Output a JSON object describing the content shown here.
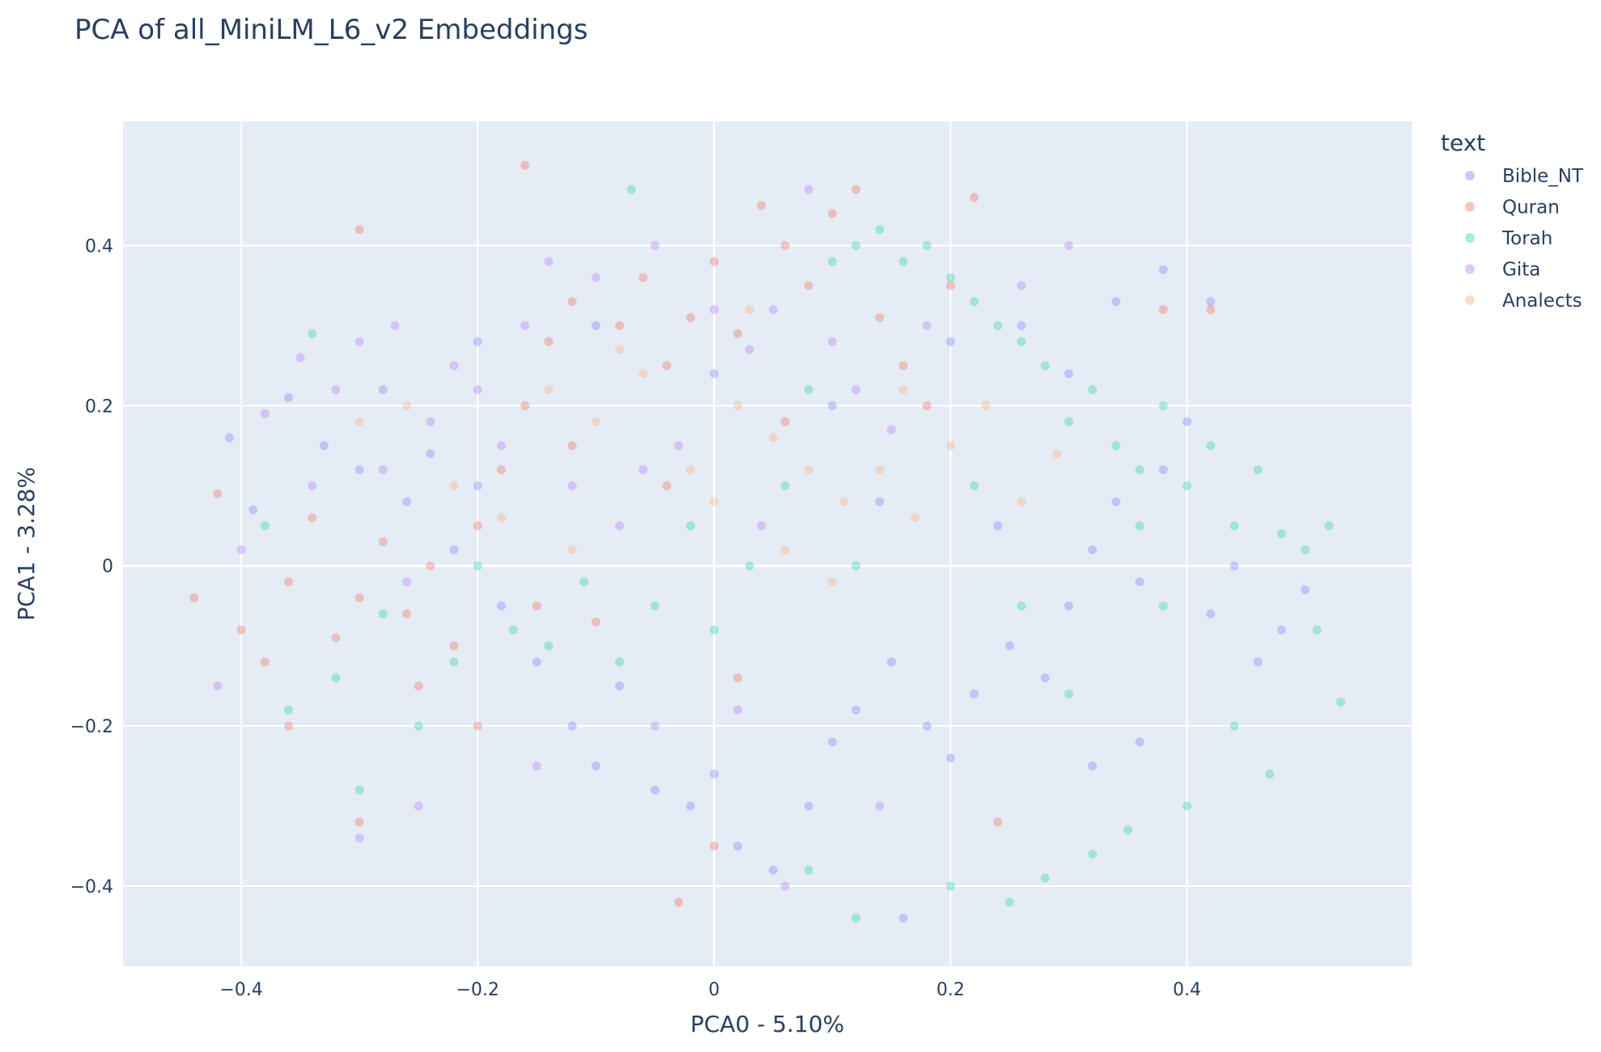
{
  "chart_data": {
    "type": "scatter",
    "title": "PCA of all_MiniLM_L6_v2 Embeddings",
    "xlabel": "PCA0 - 5.10%",
    "ylabel": "PCA1 - 3.28%",
    "xlim": [
      -0.5,
      0.59
    ],
    "ylim": [
      -0.5,
      0.555
    ],
    "xticks": [
      -0.4,
      -0.2,
      0,
      0.2,
      0.4
    ],
    "xtick_labels": [
      "−0.4",
      "−0.2",
      "0",
      "0.2",
      "0.4"
    ],
    "yticks": [
      -0.4,
      -0.2,
      0,
      0.2,
      0.4
    ],
    "ytick_labels": [
      "−0.4",
      "−0.2",
      "0",
      "0.2",
      "0.4"
    ],
    "grid": true,
    "legend_title": "text",
    "legend_position": "right",
    "series": [
      {
        "name": "Bible_NT",
        "color": "#636efa",
        "points": [
          [
            -0.41,
            0.16
          ],
          [
            -0.39,
            0.07
          ],
          [
            -0.36,
            0.21
          ],
          [
            -0.33,
            0.15
          ],
          [
            -0.3,
            0.12
          ],
          [
            -0.28,
            0.22
          ],
          [
            -0.26,
            0.08
          ],
          [
            -0.24,
            0.14
          ],
          [
            -0.22,
            0.02
          ],
          [
            -0.2,
            0.1
          ],
          [
            -0.18,
            -0.05
          ],
          [
            -0.15,
            -0.12
          ],
          [
            -0.12,
            -0.2
          ],
          [
            -0.1,
            -0.25
          ],
          [
            -0.08,
            -0.15
          ],
          [
            -0.05,
            -0.28
          ],
          [
            -0.02,
            -0.3
          ],
          [
            0.0,
            -0.26
          ],
          [
            0.02,
            -0.35
          ],
          [
            0.05,
            -0.38
          ],
          [
            0.08,
            -0.3
          ],
          [
            0.1,
            -0.22
          ],
          [
            0.12,
            -0.18
          ],
          [
            0.15,
            -0.12
          ],
          [
            0.18,
            -0.2
          ],
          [
            0.2,
            -0.24
          ],
          [
            0.22,
            -0.16
          ],
          [
            0.25,
            -0.1
          ],
          [
            0.28,
            -0.14
          ],
          [
            0.3,
            -0.05
          ],
          [
            0.32,
            0.02
          ],
          [
            0.34,
            0.08
          ],
          [
            0.36,
            -0.02
          ],
          [
            0.38,
            0.12
          ],
          [
            0.4,
            0.18
          ],
          [
            0.42,
            -0.06
          ],
          [
            0.44,
            0.0
          ],
          [
            0.46,
            -0.12
          ],
          [
            0.48,
            -0.08
          ],
          [
            0.5,
            -0.03
          ],
          [
            0.3,
            0.24
          ],
          [
            0.26,
            0.3
          ],
          [
            0.34,
            0.33
          ],
          [
            0.38,
            0.37
          ],
          [
            0.42,
            0.33
          ],
          [
            0.2,
            0.28
          ],
          [
            0.1,
            0.2
          ],
          [
            0.0,
            0.24
          ],
          [
            -0.1,
            0.3
          ],
          [
            -0.2,
            0.28
          ],
          [
            0.16,
            -0.44
          ],
          [
            0.32,
            -0.25
          ],
          [
            0.36,
            -0.22
          ],
          [
            0.24,
            0.05
          ],
          [
            0.14,
            0.08
          ]
        ]
      },
      {
        "name": "Quran",
        "color": "#ef553b",
        "points": [
          [
            -0.44,
            -0.04
          ],
          [
            -0.42,
            0.09
          ],
          [
            -0.4,
            -0.08
          ],
          [
            -0.38,
            -0.12
          ],
          [
            -0.36,
            -0.02
          ],
          [
            -0.34,
            0.06
          ],
          [
            -0.32,
            -0.09
          ],
          [
            -0.3,
            -0.04
          ],
          [
            -0.28,
            0.03
          ],
          [
            -0.26,
            -0.06
          ],
          [
            -0.24,
            0.0
          ],
          [
            -0.22,
            -0.1
          ],
          [
            -0.2,
            0.05
          ],
          [
            -0.18,
            0.12
          ],
          [
            -0.16,
            0.2
          ],
          [
            -0.14,
            0.28
          ],
          [
            -0.12,
            0.33
          ],
          [
            -0.1,
            -0.07
          ],
          [
            -0.08,
            0.3
          ],
          [
            -0.06,
            0.36
          ],
          [
            -0.04,
            0.25
          ],
          [
            -0.02,
            0.31
          ],
          [
            0.0,
            0.38
          ],
          [
            0.02,
            0.29
          ],
          [
            0.04,
            0.45
          ],
          [
            0.06,
            0.4
          ],
          [
            0.08,
            0.35
          ],
          [
            0.1,
            0.44
          ],
          [
            0.12,
            0.47
          ],
          [
            0.14,
            0.31
          ],
          [
            0.16,
            0.25
          ],
          [
            0.18,
            0.2
          ],
          [
            0.2,
            0.35
          ],
          [
            0.22,
            0.46
          ],
          [
            -0.16,
            0.5
          ],
          [
            -0.3,
            0.42
          ],
          [
            -0.04,
            0.1
          ],
          [
            0.06,
            0.18
          ],
          [
            -0.12,
            0.15
          ],
          [
            -0.25,
            -0.15
          ],
          [
            -0.2,
            -0.2
          ],
          [
            -0.15,
            -0.05
          ],
          [
            -0.03,
            -0.42
          ],
          [
            0.0,
            -0.35
          ],
          [
            0.24,
            -0.32
          ],
          [
            0.38,
            0.32
          ],
          [
            0.42,
            0.32
          ],
          [
            -0.36,
            -0.2
          ],
          [
            -0.3,
            -0.32
          ],
          [
            0.02,
            -0.14
          ]
        ]
      },
      {
        "name": "Torah",
        "color": "#00cc96",
        "points": [
          [
            -0.38,
            0.05
          ],
          [
            -0.36,
            -0.18
          ],
          [
            -0.34,
            0.29
          ],
          [
            -0.32,
            -0.14
          ],
          [
            -0.3,
            -0.28
          ],
          [
            -0.28,
            -0.06
          ],
          [
            -0.25,
            -0.2
          ],
          [
            -0.22,
            -0.12
          ],
          [
            -0.2,
            0.0
          ],
          [
            -0.17,
            -0.08
          ],
          [
            -0.14,
            -0.1
          ],
          [
            -0.11,
            -0.02
          ],
          [
            -0.08,
            -0.12
          ],
          [
            -0.05,
            -0.05
          ],
          [
            -0.02,
            0.05
          ],
          [
            0.0,
            -0.08
          ],
          [
            0.03,
            0.0
          ],
          [
            0.06,
            0.1
          ],
          [
            0.08,
            0.22
          ],
          [
            0.1,
            0.38
          ],
          [
            0.12,
            0.4
          ],
          [
            0.14,
            0.42
          ],
          [
            0.16,
            0.38
          ],
          [
            0.18,
            0.4
          ],
          [
            0.2,
            0.36
          ],
          [
            0.22,
            0.33
          ],
          [
            0.24,
            0.3
          ],
          [
            0.26,
            0.28
          ],
          [
            0.28,
            0.25
          ],
          [
            0.3,
            0.18
          ],
          [
            0.32,
            0.22
          ],
          [
            0.34,
            0.15
          ],
          [
            0.36,
            0.12
          ],
          [
            0.38,
            0.2
          ],
          [
            0.4,
            0.1
          ],
          [
            0.42,
            0.15
          ],
          [
            0.44,
            0.05
          ],
          [
            0.46,
            0.12
          ],
          [
            0.48,
            0.04
          ],
          [
            0.5,
            0.02
          ],
          [
            0.52,
            0.05
          ],
          [
            0.53,
            -0.17
          ],
          [
            0.51,
            -0.08
          ],
          [
            0.47,
            -0.26
          ],
          [
            0.44,
            -0.2
          ],
          [
            0.4,
            -0.3
          ],
          [
            0.35,
            -0.33
          ],
          [
            0.32,
            -0.36
          ],
          [
            0.28,
            -0.39
          ],
          [
            0.25,
            -0.42
          ],
          [
            0.2,
            -0.4
          ],
          [
            0.12,
            -0.44
          ],
          [
            0.08,
            -0.38
          ],
          [
            -0.07,
            0.47
          ],
          [
            0.3,
            -0.16
          ],
          [
            0.36,
            0.05
          ],
          [
            0.38,
            -0.05
          ],
          [
            0.26,
            -0.05
          ],
          [
            0.22,
            0.1
          ],
          [
            0.12,
            0.0
          ]
        ]
      },
      {
        "name": "Gita",
        "color": "#ab63fa",
        "points": [
          [
            -0.42,
            -0.15
          ],
          [
            -0.4,
            0.02
          ],
          [
            -0.38,
            0.19
          ],
          [
            -0.35,
            0.26
          ],
          [
            -0.32,
            0.22
          ],
          [
            -0.3,
            0.28
          ],
          [
            -0.27,
            0.3
          ],
          [
            -0.24,
            0.18
          ],
          [
            -0.22,
            0.25
          ],
          [
            -0.2,
            0.22
          ],
          [
            -0.18,
            0.15
          ],
          [
            -0.16,
            0.3
          ],
          [
            -0.14,
            0.38
          ],
          [
            -0.12,
            0.1
          ],
          [
            -0.1,
            0.36
          ],
          [
            -0.08,
            0.05
          ],
          [
            -0.05,
            0.4
          ],
          [
            -0.03,
            0.15
          ],
          [
            0.0,
            0.32
          ],
          [
            0.03,
            0.27
          ],
          [
            0.05,
            0.32
          ],
          [
            0.08,
            0.47
          ],
          [
            0.1,
            0.28
          ],
          [
            0.12,
            0.22
          ],
          [
            0.15,
            0.17
          ],
          [
            0.18,
            0.3
          ],
          [
            0.26,
            0.35
          ],
          [
            0.3,
            0.4
          ],
          [
            -0.3,
            -0.34
          ],
          [
            -0.25,
            -0.3
          ],
          [
            -0.15,
            -0.25
          ],
          [
            -0.05,
            -0.2
          ],
          [
            0.02,
            -0.18
          ],
          [
            0.06,
            -0.4
          ],
          [
            -0.34,
            0.1
          ],
          [
            -0.28,
            0.12
          ],
          [
            -0.26,
            -0.02
          ],
          [
            -0.06,
            0.12
          ],
          [
            0.04,
            0.05
          ],
          [
            0.14,
            -0.3
          ]
        ]
      },
      {
        "name": "Analects",
        "color": "#ffa15a",
        "points": [
          [
            -0.3,
            0.18
          ],
          [
            -0.26,
            0.2
          ],
          [
            -0.22,
            0.1
          ],
          [
            -0.18,
            0.06
          ],
          [
            -0.14,
            0.22
          ],
          [
            -0.1,
            0.18
          ],
          [
            -0.06,
            0.24
          ],
          [
            -0.02,
            0.12
          ],
          [
            0.02,
            0.2
          ],
          [
            0.05,
            0.16
          ],
          [
            0.08,
            0.12
          ],
          [
            0.11,
            0.08
          ],
          [
            0.14,
            0.12
          ],
          [
            0.17,
            0.06
          ],
          [
            0.2,
            0.15
          ],
          [
            0.23,
            0.2
          ],
          [
            0.26,
            0.08
          ],
          [
            0.29,
            0.14
          ],
          [
            -0.12,
            0.02
          ],
          [
            0.0,
            0.08
          ],
          [
            0.06,
            0.02
          ],
          [
            0.1,
            -0.02
          ],
          [
            0.16,
            0.22
          ],
          [
            -0.08,
            0.27
          ],
          [
            0.03,
            0.32
          ]
        ]
      }
    ]
  }
}
